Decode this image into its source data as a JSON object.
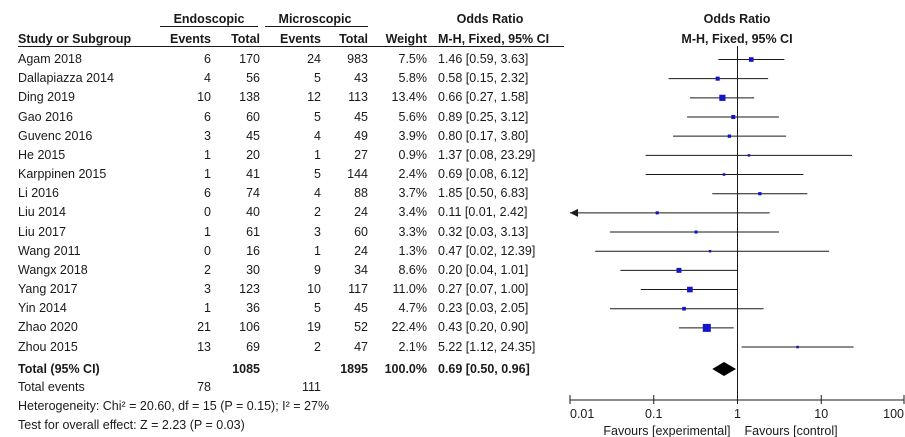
{
  "headers": {
    "group1": "Endoscopic",
    "group2": "Microscopic",
    "study": "Study or Subgroup",
    "events1": "Events",
    "total1": "Total",
    "events2": "Events",
    "total2": "Total",
    "weight": "Weight",
    "or_title": "Odds Ratio",
    "or_method": "M-H, Fixed, 95% CI",
    "plot_title": "Odds Ratio",
    "plot_method": "M-H, Fixed, 95% CI"
  },
  "totals": {
    "label": "Total (95% CI)",
    "total1": "1085",
    "total2": "1895",
    "weight": "100.0%",
    "ci": "0.69 [0.50, 0.96]",
    "events_label": "Total events",
    "events1": "78",
    "events2": "111",
    "heterogeneity": "Heterogeneity: Chi² = 20.60, df = 15 (P = 0.15); I² = 27%",
    "overall_effect": "Test for overall effect: Z = 2.23 (P = 0.03)"
  },
  "axis": {
    "favours_left": "Favours [experimental]",
    "favours_right": "Favours [control]"
  },
  "colors": {
    "marker": "#1515c8",
    "line": "#1a1a1a",
    "diamond": "#000000"
  },
  "chart_data": {
    "type": "forest",
    "scale": "log",
    "xlim": [
      0.01,
      100
    ],
    "xticks": [
      0.01,
      0.1,
      1,
      10,
      100
    ],
    "xtick_labels": [
      "0.01",
      "0.1",
      "1",
      "10",
      "100"
    ],
    "reference_line": 1,
    "studies": [
      {
        "name": "Agam 2018",
        "e1": 6,
        "t1": 170,
        "e2": 24,
        "t2": 983,
        "weight": "7.5%",
        "ci_text": "1.46 [0.59, 3.63]",
        "or": 1.46,
        "lo": 0.59,
        "hi": 3.63
      },
      {
        "name": "Dallapiazza 2014",
        "e1": 4,
        "t1": 56,
        "e2": 5,
        "t2": 43,
        "weight": "5.8%",
        "ci_text": "0.58 [0.15, 2.32]",
        "or": 0.58,
        "lo": 0.15,
        "hi": 2.32
      },
      {
        "name": "Ding 2019",
        "e1": 10,
        "t1": 138,
        "e2": 12,
        "t2": 113,
        "weight": "13.4%",
        "ci_text": "0.66 [0.27, 1.58]",
        "or": 0.66,
        "lo": 0.27,
        "hi": 1.58
      },
      {
        "name": "Gao 2016",
        "e1": 6,
        "t1": 60,
        "e2": 5,
        "t2": 45,
        "weight": "5.6%",
        "ci_text": "0.89 [0.25, 3.12]",
        "or": 0.89,
        "lo": 0.25,
        "hi": 3.12
      },
      {
        "name": "Guvenc 2016",
        "e1": 3,
        "t1": 45,
        "e2": 4,
        "t2": 49,
        "weight": "3.9%",
        "ci_text": "0.80 [0.17, 3.80]",
        "or": 0.8,
        "lo": 0.17,
        "hi": 3.8
      },
      {
        "name": "He 2015",
        "e1": 1,
        "t1": 20,
        "e2": 1,
        "t2": 27,
        "weight": "0.9%",
        "ci_text": "1.37 [0.08, 23.29]",
        "or": 1.37,
        "lo": 0.08,
        "hi": 23.29
      },
      {
        "name": "Karppinen 2015",
        "e1": 1,
        "t1": 41,
        "e2": 5,
        "t2": 144,
        "weight": "2.4%",
        "ci_text": "0.69 [0.08, 6.12]",
        "or": 0.69,
        "lo": 0.08,
        "hi": 6.12
      },
      {
        "name": "Li 2016",
        "e1": 6,
        "t1": 74,
        "e2": 4,
        "t2": 88,
        "weight": "3.7%",
        "ci_text": "1.85 [0.50, 6.83]",
        "or": 1.85,
        "lo": 0.5,
        "hi": 6.83
      },
      {
        "name": "Liu 2014",
        "e1": 0,
        "t1": 40,
        "e2": 2,
        "t2": 24,
        "weight": "3.4%",
        "ci_text": "0.11 [0.01, 2.42]",
        "or": 0.11,
        "lo": 0.01,
        "hi": 2.42,
        "arrow_left": true
      },
      {
        "name": "Liu 2017",
        "e1": 1,
        "t1": 61,
        "e2": 3,
        "t2": 60,
        "weight": "3.3%",
        "ci_text": "0.32 [0.03, 3.13]",
        "or": 0.32,
        "lo": 0.03,
        "hi": 3.13
      },
      {
        "name": "Wang 2011",
        "e1": 0,
        "t1": 16,
        "e2": 1,
        "t2": 24,
        "weight": "1.3%",
        "ci_text": "0.47 [0.02, 12.39]",
        "or": 0.47,
        "lo": 0.02,
        "hi": 12.39
      },
      {
        "name": "Wangx 2018",
        "e1": 2,
        "t1": 30,
        "e2": 9,
        "t2": 34,
        "weight": "8.6%",
        "ci_text": "0.20 [0.04, 1.01]",
        "or": 0.2,
        "lo": 0.04,
        "hi": 1.01
      },
      {
        "name": "Yang 2017",
        "e1": 3,
        "t1": 123,
        "e2": 10,
        "t2": 117,
        "weight": "11.0%",
        "ci_text": "0.27 [0.07, 1.00]",
        "or": 0.27,
        "lo": 0.07,
        "hi": 1.0
      },
      {
        "name": "Yin 2014",
        "e1": 1,
        "t1": 36,
        "e2": 5,
        "t2": 45,
        "weight": "4.7%",
        "ci_text": "0.23 [0.03, 2.05]",
        "or": 0.23,
        "lo": 0.03,
        "hi": 2.05
      },
      {
        "name": "Zhao 2020",
        "e1": 21,
        "t1": 106,
        "e2": 19,
        "t2": 52,
        "weight": "22.4%",
        "ci_text": "0.43 [0.20, 0.90]",
        "or": 0.43,
        "lo": 0.2,
        "hi": 0.9
      },
      {
        "name": "Zhou 2015",
        "e1": 13,
        "t1": 69,
        "e2": 2,
        "t2": 47,
        "weight": "2.1%",
        "ci_text": "5.22 [1.12, 24.35]",
        "or": 5.22,
        "lo": 1.12,
        "hi": 24.35
      }
    ],
    "pooled": {
      "or": 0.69,
      "lo": 0.5,
      "hi": 0.96
    }
  }
}
